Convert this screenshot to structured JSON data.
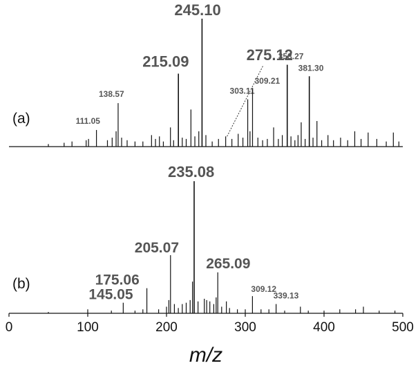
{
  "chart_data": {
    "type": "bar",
    "xlabel": "m/z",
    "xlim": [
      0,
      500
    ],
    "x_ticks": [
      "0",
      "100",
      "200",
      "300",
      "400",
      "500"
    ],
    "grid": false,
    "legend": "none",
    "colors": {
      "peaks": "#111111",
      "labels": "#555555",
      "axis": "#111111"
    },
    "panels": [
      {
        "label": "(a)",
        "peaks": [
          {
            "mz": 50,
            "rel": 0.02
          },
          {
            "mz": 70,
            "rel": 0.03
          },
          {
            "mz": 80,
            "rel": 0.04
          },
          {
            "mz": 98,
            "rel": 0.05
          },
          {
            "mz": 101,
            "rel": 0.06
          },
          {
            "mz": 111.05,
            "rel": 0.13,
            "label": "111.05"
          },
          {
            "mz": 125,
            "rel": 0.05
          },
          {
            "mz": 131,
            "rel": 0.07
          },
          {
            "mz": 136,
            "rel": 0.12
          },
          {
            "mz": 138.57,
            "rel": 0.34,
            "label": "138.57"
          },
          {
            "mz": 143,
            "rel": 0.07
          },
          {
            "mz": 150,
            "rel": 0.05
          },
          {
            "mz": 160,
            "rel": 0.04
          },
          {
            "mz": 170,
            "rel": 0.04
          },
          {
            "mz": 181,
            "rel": 0.09
          },
          {
            "mz": 186,
            "rel": 0.06
          },
          {
            "mz": 191,
            "rel": 0.08
          },
          {
            "mz": 196,
            "rel": 0.04
          },
          {
            "mz": 205,
            "rel": 0.15
          },
          {
            "mz": 209,
            "rel": 0.05
          },
          {
            "mz": 215.09,
            "rel": 0.57,
            "label": "215.09"
          },
          {
            "mz": 220,
            "rel": 0.07
          },
          {
            "mz": 225,
            "rel": 0.06
          },
          {
            "mz": 231,
            "rel": 0.29
          },
          {
            "mz": 236,
            "rel": 0.08
          },
          {
            "mz": 241,
            "rel": 0.12
          },
          {
            "mz": 245.1,
            "rel": 1.0,
            "label": "245.10"
          },
          {
            "mz": 250,
            "rel": 0.09
          },
          {
            "mz": 258,
            "rel": 0.04
          },
          {
            "mz": 266,
            "rel": 0.06
          },
          {
            "mz": 275.12,
            "rel": 0.08,
            "label": "275.12"
          },
          {
            "mz": 283,
            "rel": 0.06
          },
          {
            "mz": 291,
            "rel": 0.1
          },
          {
            "mz": 297,
            "rel": 0.07
          },
          {
            "mz": 303.11,
            "rel": 0.37,
            "label": "303.11"
          },
          {
            "mz": 306,
            "rel": 0.12
          },
          {
            "mz": 309.21,
            "rel": 0.45,
            "label": "309.21"
          },
          {
            "mz": 316,
            "rel": 0.07
          },
          {
            "mz": 322,
            "rel": 0.05
          },
          {
            "mz": 328,
            "rel": 0.06
          },
          {
            "mz": 336,
            "rel": 0.15
          },
          {
            "mz": 342,
            "rel": 0.06
          },
          {
            "mz": 347,
            "rel": 0.09
          },
          {
            "mz": 353.27,
            "rel": 0.64,
            "label": "353.27"
          },
          {
            "mz": 358,
            "rel": 0.08
          },
          {
            "mz": 363,
            "rel": 0.05
          },
          {
            "mz": 367,
            "rel": 0.09
          },
          {
            "mz": 371,
            "rel": 0.19
          },
          {
            "mz": 376,
            "rel": 0.06
          },
          {
            "mz": 381.3,
            "rel": 0.55,
            "label": "381.30"
          },
          {
            "mz": 386,
            "rel": 0.07
          },
          {
            "mz": 391,
            "rel": 0.2
          },
          {
            "mz": 397,
            "rel": 0.05
          },
          {
            "mz": 405,
            "rel": 0.09
          },
          {
            "mz": 412,
            "rel": 0.05
          },
          {
            "mz": 421,
            "rel": 0.07
          },
          {
            "mz": 430,
            "rel": 0.05
          },
          {
            "mz": 439,
            "rel": 0.12
          },
          {
            "mz": 447,
            "rel": 0.06
          },
          {
            "mz": 456,
            "rel": 0.11
          },
          {
            "mz": 467,
            "rel": 0.06
          },
          {
            "mz": 479,
            "rel": 0.04
          },
          {
            "mz": 488,
            "rel": 0.11
          },
          {
            "mz": 495,
            "rel": 0.04
          }
        ]
      },
      {
        "label": "(b)",
        "peaks": [
          {
            "mz": 50,
            "rel": 0.01
          },
          {
            "mz": 100,
            "rel": 0.03
          },
          {
            "mz": 130,
            "rel": 0.02
          },
          {
            "mz": 145.05,
            "rel": 0.08,
            "label": "145.05"
          },
          {
            "mz": 160,
            "rel": 0.02
          },
          {
            "mz": 170,
            "rel": 0.03
          },
          {
            "mz": 175.06,
            "rel": 0.19,
            "label": "175.06"
          },
          {
            "mz": 190,
            "rel": 0.03
          },
          {
            "mz": 200,
            "rel": 0.05
          },
          {
            "mz": 203,
            "rel": 0.1
          },
          {
            "mz": 205.07,
            "rel": 0.44,
            "label": "205.07"
          },
          {
            "mz": 210,
            "rel": 0.07
          },
          {
            "mz": 215,
            "rel": 0.04
          },
          {
            "mz": 220,
            "rel": 0.07
          },
          {
            "mz": 225,
            "rel": 0.08
          },
          {
            "mz": 230,
            "rel": 0.1
          },
          {
            "mz": 233,
            "rel": 0.24
          },
          {
            "mz": 235.08,
            "rel": 1.0,
            "label": "235.08"
          },
          {
            "mz": 240,
            "rel": 0.09
          },
          {
            "mz": 248,
            "rel": 0.11
          },
          {
            "mz": 251,
            "rel": 0.1
          },
          {
            "mz": 255,
            "rel": 0.09
          },
          {
            "mz": 260,
            "rel": 0.07
          },
          {
            "mz": 263,
            "rel": 0.12
          },
          {
            "mz": 265.09,
            "rel": 0.31,
            "label": "265.09"
          },
          {
            "mz": 270,
            "rel": 0.05
          },
          {
            "mz": 276,
            "rel": 0.09
          },
          {
            "mz": 280,
            "rel": 0.04
          },
          {
            "mz": 290,
            "rel": 0.03
          },
          {
            "mz": 300,
            "rel": 0.03
          },
          {
            "mz": 309.12,
            "rel": 0.13,
            "label": "309.12"
          },
          {
            "mz": 320,
            "rel": 0.03
          },
          {
            "mz": 330,
            "rel": 0.03
          },
          {
            "mz": 339.13,
            "rel": 0.07,
            "label": "339.13"
          },
          {
            "mz": 350,
            "rel": 0.02
          },
          {
            "mz": 370,
            "rel": 0.05
          },
          {
            "mz": 380,
            "rel": 0.02
          },
          {
            "mz": 400,
            "rel": 0.02
          },
          {
            "mz": 420,
            "rel": 0.03
          },
          {
            "mz": 440,
            "rel": 0.03
          },
          {
            "mz": 450,
            "rel": 0.05
          },
          {
            "mz": 470,
            "rel": 0.02
          },
          {
            "mz": 490,
            "rel": 0.02
          }
        ]
      }
    ]
  }
}
